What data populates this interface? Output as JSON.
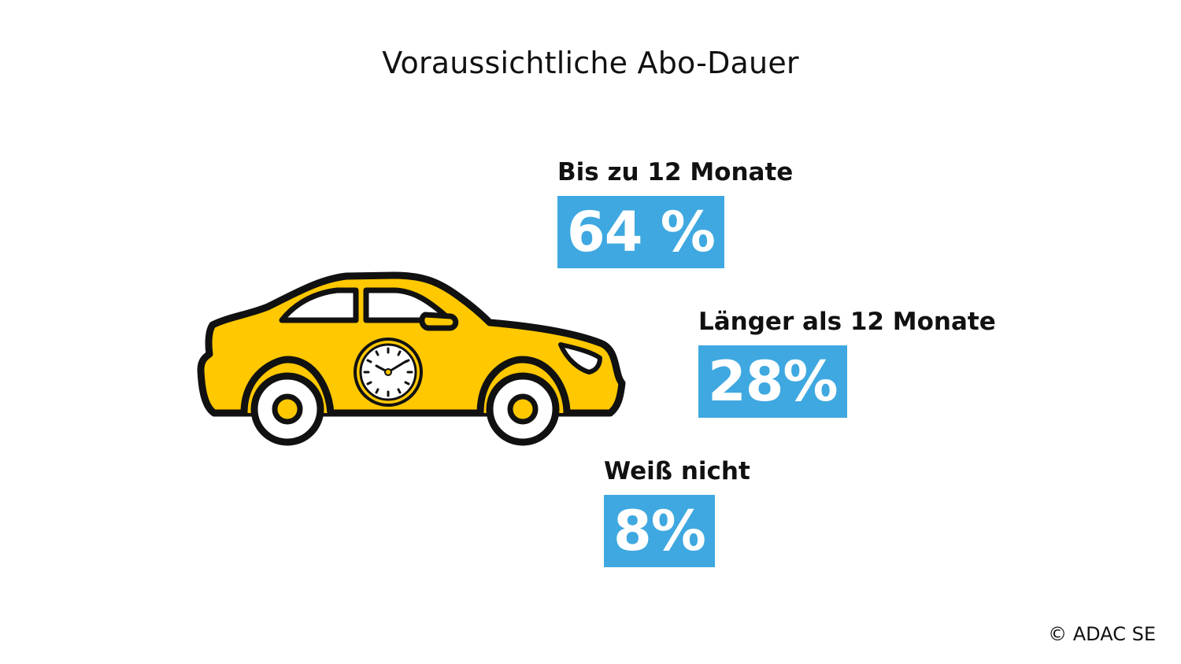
{
  "title": "Voraussichtliche Abo-Dauer",
  "chart_data": {
    "type": "bar",
    "title": "Voraussichtliche Abo-Dauer",
    "categories": [
      "Bis zu 12 Monate",
      "Länger als 12 Monate",
      "Weiß nicht"
    ],
    "values": [
      64,
      28,
      8
    ],
    "value_labels": [
      "64 %",
      "28%",
      "8%"
    ],
    "unit": "%"
  },
  "illustration": {
    "icon": "car-with-clock-icon"
  },
  "colors": {
    "accent": "#3fa8e0",
    "car": "#ffc800",
    "text": "#111111"
  },
  "copyright": "© ADAC SE"
}
